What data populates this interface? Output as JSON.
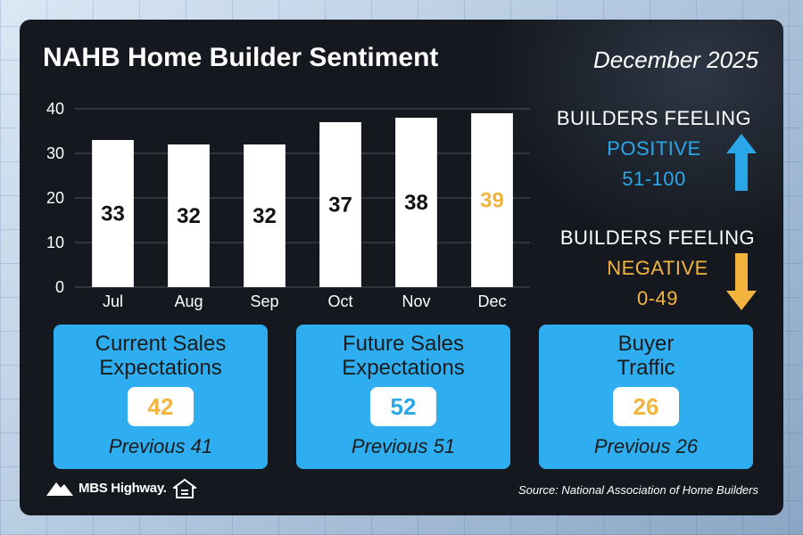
{
  "header": {
    "title": "NAHB Home Builder Sentiment",
    "date": "December 2025"
  },
  "chart_data": {
    "type": "bar",
    "categories": [
      "Jul",
      "Aug",
      "Sep",
      "Oct",
      "Nov",
      "Dec"
    ],
    "values": [
      33,
      32,
      32,
      37,
      38,
      39
    ],
    "highlight_index": 5,
    "yticks": [
      0,
      10,
      20,
      30,
      40
    ],
    "ylim": [
      0,
      40
    ],
    "grid": true,
    "bar_color": "#ffffff",
    "label_color": "#111111",
    "highlight_label_color": "#f2b43c"
  },
  "legend": {
    "positive": {
      "heading": "BUILDERS FEELING",
      "word": "POSITIVE",
      "range": "51-100",
      "icon": "arrow-up-icon",
      "color": "#2aa7e8"
    },
    "negative": {
      "heading": "BUILDERS FEELING",
      "word": "NEGATIVE",
      "range": "0-49",
      "icon": "arrow-down-icon",
      "color": "#f2b43c"
    }
  },
  "cards": [
    {
      "title_line1": "Current Sales",
      "title_line2": "Expectations",
      "value": "42",
      "previous": "Previous 41",
      "value_color": "#f2b43c"
    },
    {
      "title_line1": "Future Sales",
      "title_line2": "Expectations",
      "value": "52",
      "previous": "Previous 51",
      "value_color": "#2aa7e8"
    },
    {
      "title_line1": "Buyer",
      "title_line2": "Traffic",
      "value": "26",
      "previous": "Previous 26",
      "value_color": "#f2b43c"
    }
  ],
  "footer": {
    "logo_text": "MBS Highway.",
    "source": "Source: National Association of Home Builders"
  }
}
